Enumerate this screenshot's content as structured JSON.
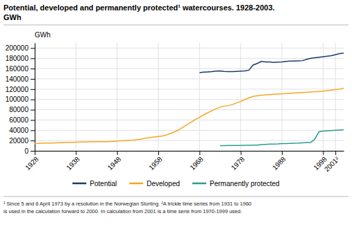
{
  "chart_data": {
    "type": "line",
    "title": "Potential, developed and permanently protected¹ watercourses. 1928-2003.",
    "subtitle": "GWh",
    "y_label": "GWh",
    "annotations": [
      "¹ Since 5 and 6 April 1973 by a resolution in the Norwegian Storting.  ²A trickle time series from 1931 to 1960",
      "is used in the calculation forward to 2000. In calculation from 2001 is a time serie from 1970-1999 used."
    ],
    "xlim": [
      1928,
      2003
    ],
    "ylim": [
      0,
      210000
    ],
    "xticks": [
      1928,
      1938,
      1948,
      1958,
      1968,
      1978,
      1988,
      1998,
      {
        "value": 2001,
        "label": "2001²"
      }
    ],
    "yticks": [
      0,
      20000,
      40000,
      60000,
      80000,
      100000,
      120000,
      140000,
      160000,
      180000,
      200000
    ],
    "grid": true,
    "legend": "bottom",
    "series": [
      {
        "name": "Potential",
        "color": "#1a3a6b",
        "x": [
          1968,
          1969,
          1970,
          1971,
          1972,
          1973,
          1974,
          1975,
          1976,
          1977,
          1978,
          1979,
          1980,
          1981,
          1982,
          1983,
          1984,
          1985,
          1986,
          1987,
          1988,
          1989,
          1990,
          1991,
          1992,
          1993,
          1994,
          1995,
          1996,
          1997,
          1998,
          1999,
          2000,
          2001,
          2002,
          2003
        ],
        "values": [
          152000,
          153000,
          153500,
          154000,
          155000,
          155500,
          154500,
          154000,
          154000,
          154500,
          155000,
          155500,
          157000,
          167000,
          170000,
          174000,
          173000,
          173000,
          172000,
          172500,
          173000,
          174000,
          174500,
          174500,
          175000,
          175500,
          178000,
          180000,
          181000,
          182000,
          183000,
          184000,
          185000,
          187000,
          189000,
          190000
        ]
      },
      {
        "name": "Developed",
        "color": "#f5a623",
        "x": [
          1928,
          1929,
          1930,
          1931,
          1932,
          1933,
          1934,
          1935,
          1936,
          1937,
          1938,
          1939,
          1940,
          1941,
          1942,
          1943,
          1944,
          1945,
          1946,
          1947,
          1948,
          1949,
          1950,
          1951,
          1952,
          1953,
          1954,
          1955,
          1956,
          1957,
          1958,
          1959,
          1960,
          1961,
          1962,
          1963,
          1964,
          1965,
          1966,
          1967,
          1968,
          1969,
          1970,
          1971,
          1972,
          1973,
          1974,
          1975,
          1976,
          1977,
          1978,
          1979,
          1980,
          1981,
          1982,
          1983,
          1984,
          1985,
          1986,
          1987,
          1988,
          1989,
          1990,
          1991,
          1992,
          1993,
          1994,
          1995,
          1996,
          1997,
          1998,
          1999,
          2000,
          2001,
          2002,
          2003
        ],
        "values": [
          14000,
          14500,
          15000,
          15200,
          15300,
          15500,
          15700,
          16000,
          16200,
          16500,
          16700,
          17000,
          17200,
          17500,
          17800,
          17800,
          17800,
          17800,
          18000,
          18500,
          19000,
          19500,
          20000,
          20500,
          21000,
          22000,
          23000,
          24500,
          26000,
          27000,
          28000,
          29000,
          31000,
          34000,
          37000,
          41000,
          46000,
          51000,
          56000,
          61000,
          65000,
          70000,
          74000,
          78000,
          82000,
          85000,
          87000,
          88000,
          90000,
          93000,
          96000,
          100000,
          103000,
          106000,
          107000,
          108000,
          109000,
          109500,
          110000,
          110500,
          111000,
          111500,
          112000,
          112500,
          113000,
          113500,
          114000,
          114500,
          115000,
          115500,
          116000,
          117000,
          118000,
          119000,
          120000,
          122000
        ]
      },
      {
        "name": "Permanently protected",
        "color": "#2a9d8f",
        "x": [
          1973,
          1974,
          1975,
          1976,
          1977,
          1978,
          1979,
          1980,
          1981,
          1982,
          1983,
          1984,
          1985,
          1986,
          1987,
          1988,
          1989,
          1990,
          1991,
          1992,
          1993,
          1994,
          1995,
          1996,
          1997,
          1998,
          1999,
          2000,
          2001,
          2002,
          2003
        ],
        "values": [
          10000,
          10200,
          10300,
          10400,
          10500,
          10600,
          10700,
          10800,
          11000,
          11200,
          12000,
          12500,
          13000,
          13200,
          13500,
          14000,
          14200,
          14500,
          14800,
          15000,
          15500,
          16000,
          16200,
          23000,
          37000,
          38500,
          39000,
          39500,
          40000,
          40500,
          41000
        ]
      }
    ]
  }
}
